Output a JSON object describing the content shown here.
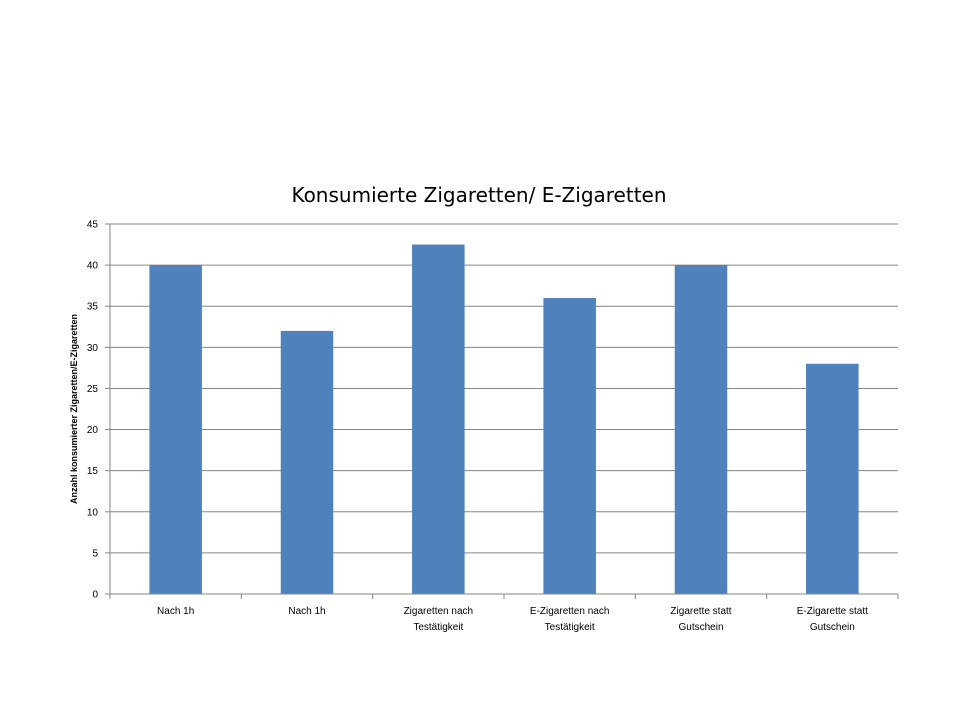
{
  "chart_data": {
    "type": "bar",
    "title": "Konsumierte Zigaretten/ E-Zigaretten",
    "xlabel": "",
    "ylabel": "Anzahl konsumierter Zigaretten/E-Zigaretten",
    "categories": [
      [
        "Nach 1h"
      ],
      [
        "Nach 1h"
      ],
      [
        "Zigaretten nach",
        "Testätigkeit"
      ],
      [
        "E-Zigaretten nach",
        "Testätigkeit"
      ],
      [
        "Zigarette statt",
        "Gutschein"
      ],
      [
        "E-Zigarette statt",
        "Gutschein"
      ]
    ],
    "values": [
      40,
      32,
      42.5,
      36,
      40,
      28
    ],
    "ylim": [
      0,
      45
    ],
    "yticks": [
      "0",
      "5",
      "10",
      "15",
      "20",
      "25",
      "30",
      "35",
      "40",
      "45"
    ],
    "grid": true,
    "legend": "none",
    "bar_color": "#4F81BD",
    "grid_color": "#868686"
  }
}
